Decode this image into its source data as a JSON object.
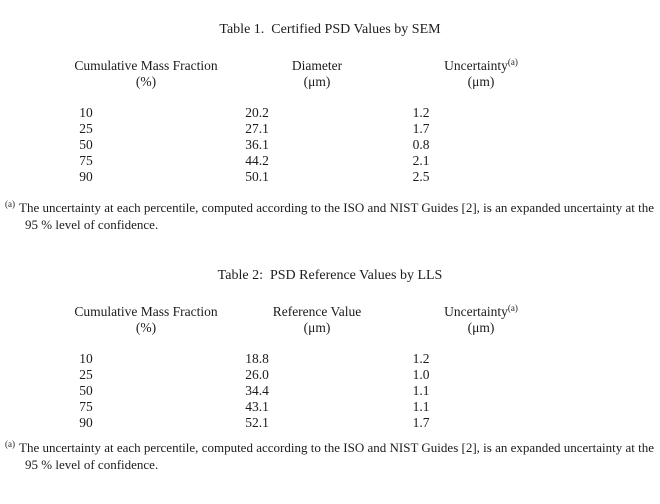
{
  "page": {
    "background_color": "#ffffff",
    "text_color": "#1b1b20"
  },
  "table1": {
    "title": "Table 1.  Certified PSD Values by SEM",
    "columns": [
      {
        "line1": "Cumulative Mass Fraction",
        "line2": "(%)"
      },
      {
        "line1": "Diameter",
        "line2": "(μm)"
      },
      {
        "line1": "Uncertainty",
        "sup": "(a)",
        "line2": "(μm)"
      }
    ],
    "rows": [
      {
        "fraction": "10",
        "value": "20.2",
        "uncertainty": "1.2"
      },
      {
        "fraction": "25",
        "value": "27.1",
        "uncertainty": "1.7"
      },
      {
        "fraction": "50",
        "value": "36.1",
        "uncertainty": "0.8"
      },
      {
        "fraction": "75",
        "value": "44.2",
        "uncertainty": "2.1"
      },
      {
        "fraction": "90",
        "value": "50.1",
        "uncertainty": "2.5"
      }
    ],
    "footnote": {
      "marker": "(a)",
      "text": "The uncertainty at each percentile, computed according to the ISO and NIST Guides [2], is an expanded uncertainty at the 95 % level of confidence."
    }
  },
  "table2": {
    "title": "Table 2:  PSD Reference Values by LLS",
    "columns": [
      {
        "line1": "Cumulative Mass Fraction",
        "line2": "(%)"
      },
      {
        "line1": "Reference Value",
        "line2": "(μm)"
      },
      {
        "line1": "Uncertainty",
        "sup": "(a)",
        "line2": "(μm)"
      }
    ],
    "rows": [
      {
        "fraction": "10",
        "value": "18.8",
        "uncertainty": "1.2"
      },
      {
        "fraction": "25",
        "value": "26.0",
        "uncertainty": "1.0"
      },
      {
        "fraction": "50",
        "value": "34.4",
        "uncertainty": "1.1"
      },
      {
        "fraction": "75",
        "value": "43.1",
        "uncertainty": "1.1"
      },
      {
        "fraction": "90",
        "value": "52.1",
        "uncertainty": "1.7"
      }
    ],
    "footnote": {
      "marker": "(a)",
      "text": "The uncertainty at each percentile, computed according to the ISO and NIST Guides [2], is an expanded uncertainty at the 95 % level of confidence."
    }
  }
}
